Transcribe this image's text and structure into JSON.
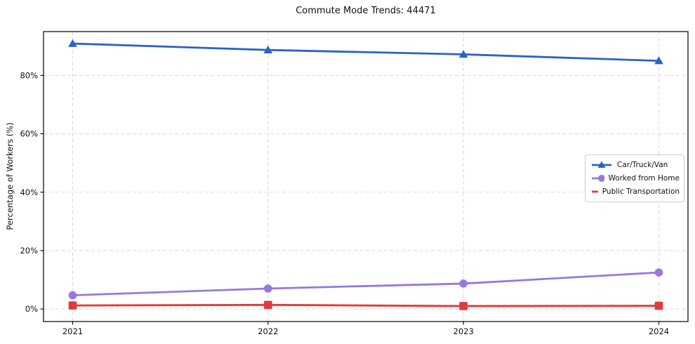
{
  "chart_data": {
    "type": "line",
    "title": "Commute Mode Trends: 44471",
    "xlabel": "",
    "ylabel": "Percentage of Workers (%)",
    "x": [
      2021,
      2022,
      2023,
      2024
    ],
    "xtick_labels": [
      "2021",
      "2022",
      "2023",
      "2024"
    ],
    "yticks": [
      0,
      20,
      40,
      60,
      80
    ],
    "ytick_labels": [
      "0%",
      "20%",
      "40%",
      "60%",
      "80%"
    ],
    "ylim": [
      -4.3,
      95.0
    ],
    "grid": true,
    "grid_style": "dashed",
    "legend_position": "center-right",
    "series": [
      {
        "name": "Car/Truck/Van",
        "values": [
          90.9,
          88.7,
          87.2,
          85.0
        ],
        "color": "#2a64c6",
        "marker": "triangle"
      },
      {
        "name": "Worked from Home",
        "values": [
          4.7,
          7.0,
          8.7,
          12.5
        ],
        "color": "#9878dd",
        "marker": "circle"
      },
      {
        "name": "Public Transportation",
        "values": [
          1.2,
          1.4,
          1.0,
          1.1
        ],
        "color": "#e03b3b",
        "marker": "square"
      }
    ]
  }
}
